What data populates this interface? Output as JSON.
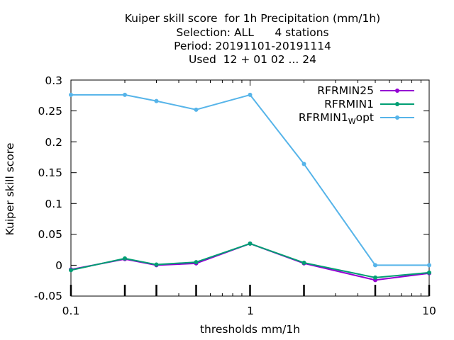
{
  "chart_data": {
    "type": "line",
    "title_lines": [
      "Kuiper skill score  for 1h Precipitation (mm/1h)",
      "Selection: ALL      4 stations",
      "Period: 20191101-20191114",
      "Used  12 + 01 02 ... 24"
    ],
    "xlabel": "thresholds mm/1h",
    "ylabel": "Kuiper skill score",
    "xscale": "log",
    "xlim": [
      0.1,
      10
    ],
    "ylim": [
      -0.05,
      0.3
    ],
    "yticks": [
      "0.3",
      "0.25",
      "0.2",
      "0.15",
      "0.1",
      "0.05",
      "0",
      "-0.05"
    ],
    "xticks": [
      "0.1",
      "1",
      "10"
    ],
    "x": [
      0.1,
      0.2,
      0.3,
      0.5,
      1,
      2,
      5,
      10
    ],
    "series": [
      {
        "name": "RFRMIN25",
        "color": "#9400d3",
        "values": [
          -0.007,
          0.01,
          0.0,
          0.003,
          0.035,
          0.003,
          -0.024,
          -0.013
        ]
      },
      {
        "name": "RFRMIN1",
        "color": "#009e73",
        "values": [
          -0.008,
          0.011,
          0.001,
          0.005,
          0.035,
          0.004,
          -0.02,
          -0.012
        ]
      },
      {
        "name": "RFRMIN1",
        "name_sub": "W",
        "name_suffix": "opt",
        "color": "#56b4e9",
        "values": [
          0.276,
          0.276,
          0.266,
          0.252,
          0.276,
          0.164,
          0.0,
          0.0
        ]
      }
    ],
    "legend_position": "top-right",
    "grid": false
  }
}
